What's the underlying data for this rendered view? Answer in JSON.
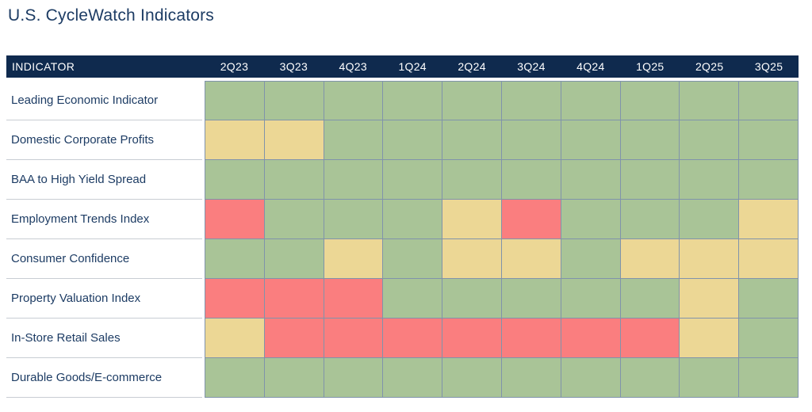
{
  "title": "U.S. CycleWatch Indicators",
  "colors": {
    "header_bg": "#0f2a4e",
    "header_text": "#ffffff",
    "title_text": "#1d3c64",
    "label_text": "#1d3c64",
    "grid_line": "#8093ab",
    "row_divider": "#c8cdd3",
    "green": "#a9c497",
    "yellow": "#ecd795",
    "red": "#fa7e7f"
  },
  "chart_data": {
    "type": "heatmap",
    "title": "U.S. CycleWatch Indicators",
    "columns_header": "INDICATOR",
    "columns": [
      "2Q23",
      "3Q23",
      "4Q23",
      "1Q24",
      "2Q24",
      "3Q24",
      "4Q24",
      "1Q25",
      "2Q25",
      "3Q25"
    ],
    "rows": [
      {
        "label": "Leading Economic Indicator",
        "values": [
          "green",
          "green",
          "green",
          "green",
          "green",
          "green",
          "green",
          "green",
          "green",
          "green"
        ]
      },
      {
        "label": "Domestic Corporate Profits",
        "values": [
          "yellow",
          "yellow",
          "green",
          "green",
          "green",
          "green",
          "green",
          "green",
          "green",
          "green"
        ]
      },
      {
        "label": "BAA to High Yield Spread",
        "values": [
          "green",
          "green",
          "green",
          "green",
          "green",
          "green",
          "green",
          "green",
          "green",
          "green"
        ]
      },
      {
        "label": "Employment Trends Index",
        "values": [
          "red",
          "green",
          "green",
          "green",
          "yellow",
          "red",
          "green",
          "green",
          "green",
          "yellow"
        ]
      },
      {
        "label": "Consumer Confidence",
        "values": [
          "green",
          "green",
          "yellow",
          "green",
          "yellow",
          "yellow",
          "green",
          "yellow",
          "yellow",
          "yellow"
        ]
      },
      {
        "label": "Property Valuation Index",
        "values": [
          "red",
          "red",
          "red",
          "green",
          "green",
          "green",
          "green",
          "green",
          "yellow",
          "green"
        ]
      },
      {
        "label": "In-Store Retail Sales",
        "values": [
          "yellow",
          "red",
          "red",
          "red",
          "red",
          "red",
          "red",
          "red",
          "yellow",
          "green"
        ]
      },
      {
        "label": "Durable Goods/E-commerce",
        "values": [
          "green",
          "green",
          "green",
          "green",
          "green",
          "green",
          "green",
          "green",
          "green",
          "green"
        ]
      }
    ],
    "value_colors": {
      "green": "#a9c497",
      "yellow": "#ecd795",
      "red": "#fa7e7f"
    },
    "legend_position": "none",
    "grid": true
  }
}
